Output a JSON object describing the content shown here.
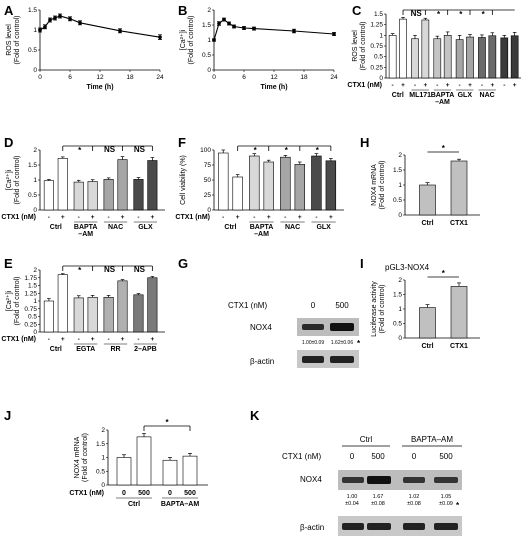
{
  "figure": {
    "panel_letters": [
      "A",
      "B",
      "C",
      "D",
      "E",
      "F",
      "G",
      "H",
      "I",
      "J",
      "K"
    ],
    "axis_labels": {
      "time": "Time (h)",
      "ros": "ROS level",
      "ca": "[Ca²⁺]i",
      "viab": "Cell viability (%)",
      "nox_mrna": "NOX4 mRNA",
      "luc": "Luciferase activity",
      "fold": "(Fold of control)"
    },
    "ctx1_label": "CTX1 (nM)",
    "sign_minus": "-",
    "sign_plus": "+",
    "sig_star": "*",
    "sig_ns": "NS",
    "blot_G": {
      "ctx1_label": "CTX1 (nM)",
      "doses": [
        "0",
        "500"
      ],
      "protein": "NOX4",
      "loading": "β-actin",
      "quant": [
        "1.00±0.09",
        "1.62±0.06"
      ],
      "star": "*"
    },
    "blot_K": {
      "groups": [
        "Ctrl",
        "BAPTA–AM"
      ],
      "ctx1_label": "CTX1 (nM)",
      "doses": [
        "0",
        "500",
        "0",
        "500"
      ],
      "protein": "NOX4",
      "loading": "β-actin",
      "quant_top": [
        "1.00",
        "1.67",
        "1.02",
        "1.05"
      ],
      "quant_bottom": [
        "±0.04",
        "±0.08",
        "±0.08",
        "±0.09"
      ],
      "star": "*"
    },
    "panel_I_title": "pGL3-NOX4"
  },
  "chart_data": [
    {
      "id": "A",
      "type": "line",
      "xlabel": "Time (h)",
      "ylabel": "ROS level (Fold of control)",
      "x": [
        0,
        1,
        2,
        3,
        4,
        6,
        8,
        16,
        24
      ],
      "y": [
        1.0,
        1.08,
        1.25,
        1.3,
        1.35,
        1.28,
        1.18,
        0.98,
        0.82
      ],
      "err": [
        0.05,
        0.05,
        0.05,
        0.05,
        0.05,
        0.05,
        0.05,
        0.05,
        0.06
      ],
      "xticks": [
        0,
        6,
        12,
        18,
        24
      ],
      "yticks": [
        0,
        0.5,
        1.0,
        1.5
      ],
      "ylim": [
        0,
        1.5
      ],
      "xlim": [
        0,
        24
      ]
    },
    {
      "id": "B",
      "type": "line",
      "xlabel": "Time (h)",
      "ylabel": "[Ca²⁺]i (Fold of control)",
      "x": [
        0,
        1,
        2,
        3,
        4,
        6,
        8,
        16,
        24
      ],
      "y": [
        1.0,
        1.55,
        1.68,
        1.55,
        1.45,
        1.4,
        1.38,
        1.3,
        1.2
      ],
      "err": [
        0.04,
        0.06,
        0.05,
        0.05,
        0.05,
        0.05,
        0.05,
        0.06,
        0.05
      ],
      "xticks": [
        0,
        6,
        12,
        18,
        24
      ],
      "yticks": [
        0,
        0.5,
        1.0,
        1.5,
        2.0
      ],
      "ylim": [
        0,
        2.0
      ],
      "xlim": [
        0,
        24
      ]
    },
    {
      "id": "C",
      "type": "bar",
      "ylabel": "ROS level (Fold of control)",
      "values": [
        1.0,
        1.38,
        0.92,
        1.36,
        0.92,
        1.0,
        0.9,
        0.96,
        0.95,
        0.99,
        0.94,
        0.99
      ],
      "err": [
        0.04,
        0.04,
        0.08,
        0.04,
        0.06,
        0.08,
        0.1,
        0.06,
        0.06,
        0.07,
        0.06,
        0.08
      ],
      "ctx": [
        "-",
        "+",
        "-",
        "+",
        "-",
        "+",
        "-",
        "+",
        "-",
        "+",
        "-",
        "+"
      ],
      "colors": [
        "#ffffff",
        "#ffffff",
        "#d8d8d8",
        "#d8d8d8",
        "#c4c4c4",
        "#c4c4c4",
        "#a6a6a6",
        "#a6a6a6",
        "#6a6a6a",
        "#6a6a6a",
        "#3a3a3a",
        "#3a3a3a"
      ],
      "groups": [
        "Ctrl",
        "ML171",
        "BAPTA\n–AM",
        "GLX",
        "NAC"
      ],
      "yticks": [
        0,
        0.25,
        0.5,
        0.75,
        1.0,
        1.25,
        1.5
      ],
      "ylim": [
        0,
        1.5
      ]
    },
    {
      "id": "D",
      "type": "bar",
      "ylabel": "[Ca²⁺]i (Fold of control)",
      "values": [
        0.98,
        1.72,
        0.93,
        0.95,
        1.02,
        1.68,
        1.02,
        1.65
      ],
      "err": [
        0.04,
        0.05,
        0.06,
        0.06,
        0.05,
        0.1,
        0.06,
        0.1
      ],
      "ctx": [
        "-",
        "+",
        "-",
        "+",
        "-",
        "+",
        "-",
        "+"
      ],
      "colors": [
        "#ffffff",
        "#ffffff",
        "#d8d8d8",
        "#d8d8d8",
        "#a6a6a6",
        "#a6a6a6",
        "#4a4a4a",
        "#4a4a4a"
      ],
      "groups": [
        "Ctrl",
        "BAPTA\n–AM",
        "NAC",
        "GLX"
      ],
      "yticks": [
        0,
        0.5,
        1.0,
        1.5,
        2.0
      ],
      "ylim": [
        0,
        2.0
      ]
    },
    {
      "id": "E",
      "type": "bar",
      "ylabel": "[Ca²⁺]i (Fold of control)",
      "values": [
        1.0,
        1.85,
        1.1,
        1.12,
        1.12,
        1.65,
        1.2,
        1.75
      ],
      "err": [
        0.08,
        0.03,
        0.07,
        0.06,
        0.06,
        0.04,
        0.04,
        0.04
      ],
      "ctx": [
        "-",
        "+",
        "-",
        "+",
        "-",
        "+",
        "-",
        "+"
      ],
      "colors": [
        "#ffffff",
        "#ffffff",
        "#d8d8d8",
        "#d8d8d8",
        "#b0b0b0",
        "#b0b0b0",
        "#7a7a7a",
        "#7a7a7a"
      ],
      "groups": [
        "Ctrl",
        "EGTA",
        "RR",
        "2–APB"
      ],
      "yticks": [
        0,
        0.25,
        0.5,
        0.75,
        1.0,
        1.25,
        1.5,
        1.75,
        2.0
      ],
      "ylim": [
        0,
        2.0
      ]
    },
    {
      "id": "F",
      "type": "bar",
      "ylabel": "Cell viability (%)",
      "values": [
        95,
        55,
        90,
        80,
        88,
        76,
        90,
        82
      ],
      "err": [
        5,
        4,
        4,
        3,
        3,
        4,
        4,
        4
      ],
      "ctx": [
        "-",
        "+",
        "-",
        "+",
        "-",
        "+",
        "-",
        "+"
      ],
      "colors": [
        "#ffffff",
        "#ffffff",
        "#d8d8d8",
        "#d8d8d8",
        "#a6a6a6",
        "#a6a6a6",
        "#4a4a4a",
        "#4a4a4a"
      ],
      "groups": [
        "Ctrl",
        "BAPTA\n–AM",
        "NAC",
        "GLX"
      ],
      "yticks": [
        0,
        25,
        50,
        75,
        100
      ],
      "ylim": [
        0,
        100
      ]
    },
    {
      "id": "H",
      "type": "bar",
      "ylabel": "NOX4 mRNA (Fold of control)",
      "values": [
        1.0,
        1.8
      ],
      "err": [
        0.08,
        0.06
      ],
      "colors": [
        "#c0c0c0",
        "#c0c0c0"
      ],
      "categories": [
        "Ctrl",
        "CTX1"
      ],
      "yticks": [
        0,
        0.5,
        1.0,
        1.5,
        2.0
      ],
      "ylim": [
        0,
        2.0
      ]
    },
    {
      "id": "I",
      "type": "bar",
      "ylabel": "Luciferase activity (Fold of control)",
      "values": [
        1.05,
        1.78
      ],
      "err": [
        0.1,
        0.12
      ],
      "colors": [
        "#c0c0c0",
        "#c0c0c0"
      ],
      "categories": [
        "Ctrl",
        "CTX1"
      ],
      "yticks": [
        0,
        0.5,
        1.0,
        1.5,
        2.0
      ],
      "ylim": [
        0,
        2.0
      ]
    },
    {
      "id": "J",
      "type": "bar",
      "ylabel": "NOX4 mRNA (Fold of control)",
      "values": [
        1.0,
        1.75,
        0.9,
        1.05
      ],
      "err": [
        0.1,
        0.12,
        0.1,
        0.1
      ],
      "colors": [
        "#ffffff",
        "#ffffff",
        "#ffffff",
        "#ffffff"
      ],
      "doses": [
        "0",
        "500",
        "0",
        "500"
      ],
      "groups": [
        "Ctrl",
        "BAPTA–AM"
      ],
      "yticks": [
        0,
        0.5,
        1.0,
        1.5,
        2.0
      ],
      "ylim": [
        0,
        2.0
      ]
    }
  ]
}
